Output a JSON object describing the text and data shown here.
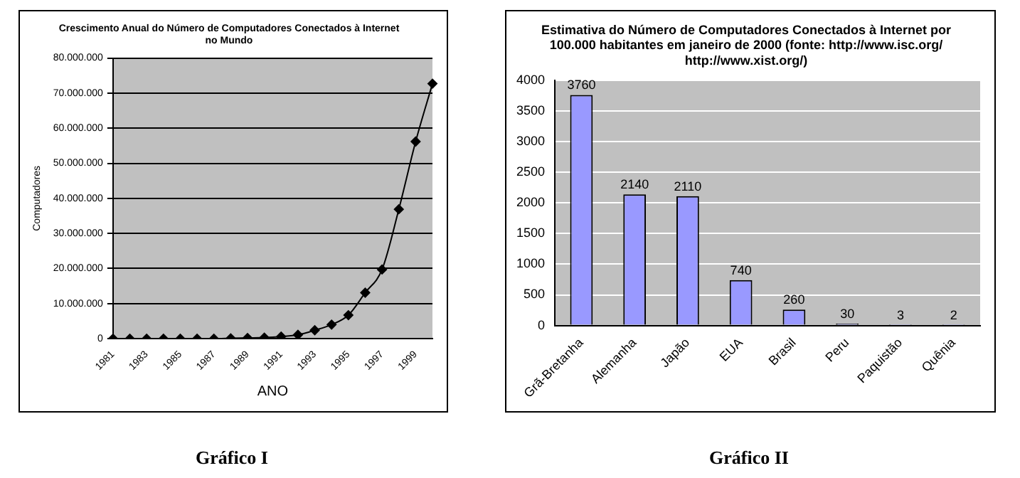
{
  "chart_data": [
    {
      "type": "line",
      "title": "Crescimento Anual do Número de Computadores Conectados à Internet\nno Mundo",
      "xlabel": "ANO",
      "ylabel": "Computadores",
      "categories": [
        "1981",
        null,
        "1983",
        null,
        "1985",
        null,
        "1987",
        null,
        "1989",
        null,
        "1991",
        null,
        "1993",
        null,
        "1995",
        null,
        "1997",
        null,
        "1999",
        null
      ],
      "series": [
        {
          "color": "#000000",
          "values": [
            0,
            0,
            0,
            0,
            0,
            0,
            0,
            100000,
            200000,
            300000,
            600000,
            1100000,
            2400000,
            4000000,
            6700000,
            13100000,
            19700000,
            36900000,
            56200000,
            72700000
          ]
        }
      ],
      "ylim": [
        0,
        80000000
      ],
      "yticks": [
        0,
        {
          "value": 10000000,
          "label": "10.000.000"
        },
        {
          "value": 20000000,
          "label": "20.000.000"
        },
        {
          "value": 30000000,
          "label": "30.000.000"
        },
        {
          "value": 40000000,
          "label": "40.000.000"
        },
        {
          "value": 50000000,
          "label": "50.000.000"
        },
        {
          "value": 60000000,
          "label": "60.000.000"
        },
        {
          "value": 70000000,
          "label": "70.000.000"
        },
        {
          "value": 80000000,
          "label": "80.000.000"
        }
      ],
      "grid": "y",
      "legend": false,
      "marker": "diamond",
      "line_style": "solid",
      "annotations": [
        "Gráfico I"
      ]
    },
    {
      "type": "bar",
      "title": "Estimativa do Número de Computadores Conectados à Internet por\n100.000 habitantes em janeiro de 2000 (fonte: http://www.isc.org/\nhttp://www.xist.org/)",
      "categories": [
        "Grã-Bretanha",
        "Alemanha",
        "Japão",
        "EUA",
        "Brasil",
        "Peru",
        "Paquistão",
        "Quênia"
      ],
      "series": [
        {
          "color": "#9999ff",
          "values": [
            3760,
            2140,
            2110,
            740,
            260,
            30,
            3,
            2
          ]
        }
      ],
      "ylim": [
        0,
        4000
      ],
      "yticks": [
        0,
        500,
        1000,
        1500,
        2000,
        2500,
        3000,
        3500,
        4000
      ],
      "grid": "y",
      "legend": false,
      "data_labels": true,
      "annotations": [
        "Gráfico II"
      ]
    }
  ]
}
